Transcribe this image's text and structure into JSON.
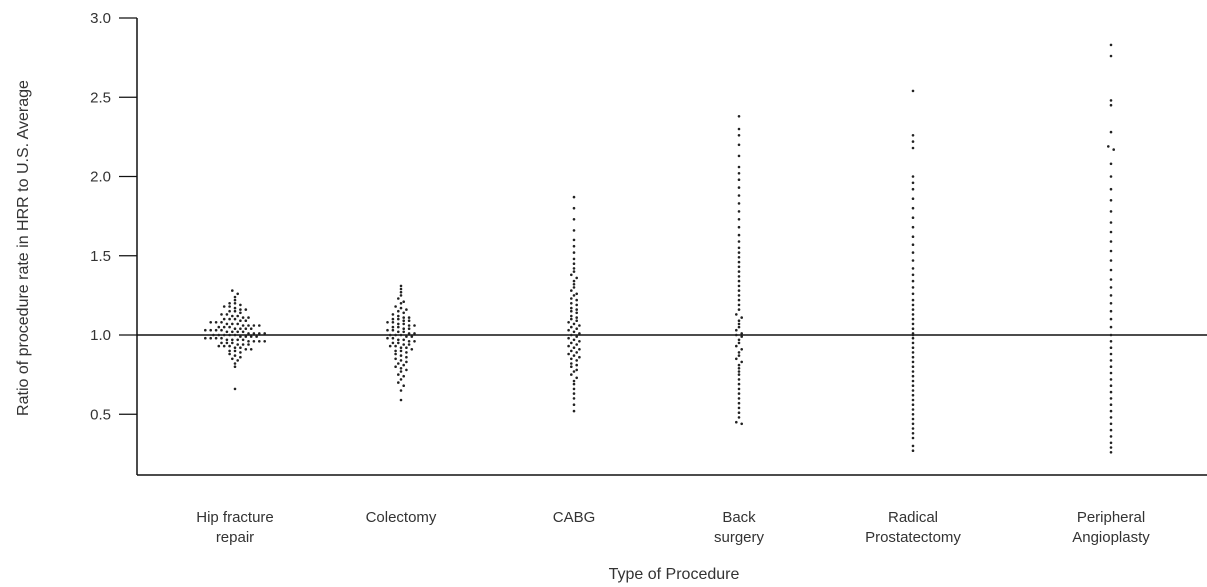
{
  "chart_data": {
    "type": "scatter",
    "subtype": "dot-strip",
    "title": "",
    "xlabel": "Type of Procedure",
    "ylabel": "Ratio of procedure rate in HRR to U.S. Average",
    "ylim": [
      0.2,
      3.0
    ],
    "yticks": [
      "3.0",
      "2.5",
      "2.0",
      "1.5",
      "1.0",
      "0.5"
    ],
    "ytick_values": [
      3.0,
      2.5,
      2.0,
      1.5,
      1.0,
      0.5
    ],
    "reference_line": 1.0,
    "grid": false,
    "legend": "none",
    "dot_color": "#222222",
    "categories": [
      [
        "Hip fracture",
        "repair"
      ],
      [
        "Colectomy"
      ],
      [
        "CABG"
      ],
      [
        "Back",
        "surgery"
      ],
      [
        "Radical",
        "Prostatectomy"
      ],
      [
        "Peripheral",
        "Angioplasty"
      ]
    ],
    "series": [
      {
        "category": "Hip fracture repair",
        "min": 0.66,
        "max": 1.28,
        "values": [
          1.28,
          1.26,
          1.24,
          1.22,
          1.2,
          1.2,
          1.19,
          1.18,
          1.18,
          1.17,
          1.16,
          1.16,
          1.15,
          1.15,
          1.14,
          1.13,
          1.13,
          1.12,
          1.12,
          1.11,
          1.11,
          1.1,
          1.1,
          1.1,
          1.09,
          1.09,
          1.08,
          1.08,
          1.08,
          1.07,
          1.07,
          1.07,
          1.06,
          1.06,
          1.06,
          1.06,
          1.05,
          1.05,
          1.05,
          1.04,
          1.04,
          1.04,
          1.04,
          1.03,
          1.03,
          1.03,
          1.03,
          1.02,
          1.02,
          1.02,
          1.02,
          1.01,
          1.01,
          1.01,
          1.01,
          1.0,
          1.0,
          1.0,
          1.0,
          1.0,
          0.99,
          0.99,
          0.99,
          0.99,
          0.98,
          0.98,
          0.98,
          0.98,
          0.97,
          0.97,
          0.97,
          0.97,
          0.96,
          0.96,
          0.96,
          0.96,
          0.95,
          0.95,
          0.95,
          0.94,
          0.94,
          0.94,
          0.93,
          0.93,
          0.93,
          0.92,
          0.92,
          0.91,
          0.91,
          0.9,
          0.9,
          0.89,
          0.88,
          0.87,
          0.86,
          0.85,
          0.84,
          0.82,
          0.8,
          0.66
        ]
      },
      {
        "category": "Colectomy",
        "min": 0.59,
        "max": 1.31,
        "values": [
          1.31,
          1.29,
          1.27,
          1.25,
          1.23,
          1.21,
          1.2,
          1.18,
          1.17,
          1.16,
          1.15,
          1.14,
          1.13,
          1.12,
          1.11,
          1.11,
          1.1,
          1.1,
          1.09,
          1.09,
          1.08,
          1.08,
          1.07,
          1.07,
          1.06,
          1.06,
          1.05,
          1.05,
          1.04,
          1.04,
          1.03,
          1.03,
          1.02,
          1.02,
          1.01,
          1.01,
          1.0,
          1.0,
          1.0,
          0.99,
          0.99,
          0.98,
          0.98,
          0.97,
          0.97,
          0.96,
          0.96,
          0.95,
          0.95,
          0.94,
          0.94,
          0.93,
          0.93,
          0.92,
          0.92,
          0.91,
          0.9,
          0.9,
          0.89,
          0.88,
          0.87,
          0.86,
          0.85,
          0.84,
          0.83,
          0.82,
          0.81,
          0.8,
          0.79,
          0.78,
          0.77,
          0.75,
          0.74,
          0.72,
          0.7,
          0.68,
          0.65,
          0.59
        ]
      },
      {
        "category": "CABG",
        "min": 0.52,
        "max": 1.87,
        "values": [
          1.87,
          1.8,
          1.73,
          1.66,
          1.6,
          1.56,
          1.52,
          1.48,
          1.45,
          1.42,
          1.4,
          1.38,
          1.36,
          1.34,
          1.32,
          1.3,
          1.28,
          1.26,
          1.25,
          1.23,
          1.22,
          1.2,
          1.19,
          1.17,
          1.16,
          1.15,
          1.14,
          1.12,
          1.11,
          1.1,
          1.09,
          1.08,
          1.07,
          1.06,
          1.05,
          1.04,
          1.03,
          1.02,
          1.01,
          1.0,
          0.99,
          0.98,
          0.97,
          0.96,
          0.95,
          0.94,
          0.93,
          0.92,
          0.91,
          0.9,
          0.89,
          0.88,
          0.87,
          0.86,
          0.85,
          0.84,
          0.82,
          0.81,
          0.8,
          0.78,
          0.77,
          0.75,
          0.73,
          0.71,
          0.69,
          0.66,
          0.63,
          0.6,
          0.56,
          0.52
        ]
      },
      {
        "category": "Back surgery",
        "min": 0.44,
        "max": 2.38,
        "values": [
          2.38,
          2.3,
          2.26,
          2.2,
          2.13,
          2.06,
          2.02,
          1.98,
          1.93,
          1.88,
          1.83,
          1.78,
          1.73,
          1.68,
          1.63,
          1.59,
          1.55,
          1.52,
          1.49,
          1.46,
          1.43,
          1.4,
          1.37,
          1.34,
          1.31,
          1.28,
          1.25,
          1.22,
          1.19,
          1.16,
          1.13,
          1.11,
          1.09,
          1.07,
          1.05,
          1.03,
          1.01,
          1.0,
          0.99,
          0.97,
          0.95,
          0.93,
          0.91,
          0.89,
          0.87,
          0.85,
          0.83,
          0.81,
          0.79,
          0.77,
          0.75,
          0.72,
          0.69,
          0.66,
          0.63,
          0.6,
          0.57,
          0.54,
          0.51,
          0.48,
          0.45,
          0.44
        ]
      },
      {
        "category": "Radical Prostatectomy",
        "min": 0.27,
        "max": 2.54,
        "values": [
          2.54,
          2.26,
          2.22,
          2.18,
          2.0,
          1.96,
          1.92,
          1.86,
          1.8,
          1.74,
          1.68,
          1.62,
          1.57,
          1.52,
          1.47,
          1.42,
          1.38,
          1.34,
          1.3,
          1.26,
          1.22,
          1.19,
          1.16,
          1.13,
          1.1,
          1.07,
          1.04,
          1.01,
          1.0,
          0.98,
          0.95,
          0.92,
          0.89,
          0.86,
          0.83,
          0.8,
          0.77,
          0.74,
          0.71,
          0.68,
          0.65,
          0.62,
          0.59,
          0.56,
          0.53,
          0.5,
          0.47,
          0.44,
          0.41,
          0.38,
          0.35,
          0.3,
          0.27
        ]
      },
      {
        "category": "Peripheral Angioplasty",
        "min": 0.26,
        "max": 2.83,
        "values": [
          2.83,
          2.76,
          2.48,
          2.45,
          2.28,
          2.19,
          2.17,
          2.08,
          2.0,
          1.92,
          1.85,
          1.78,
          1.71,
          1.65,
          1.59,
          1.53,
          1.47,
          1.41,
          1.35,
          1.3,
          1.25,
          1.2,
          1.15,
          1.1,
          1.05,
          1.0,
          0.96,
          0.92,
          0.88,
          0.84,
          0.8,
          0.76,
          0.72,
          0.68,
          0.64,
          0.6,
          0.56,
          0.52,
          0.48,
          0.44,
          0.4,
          0.36,
          0.32,
          0.29,
          0.26
        ]
      }
    ]
  }
}
